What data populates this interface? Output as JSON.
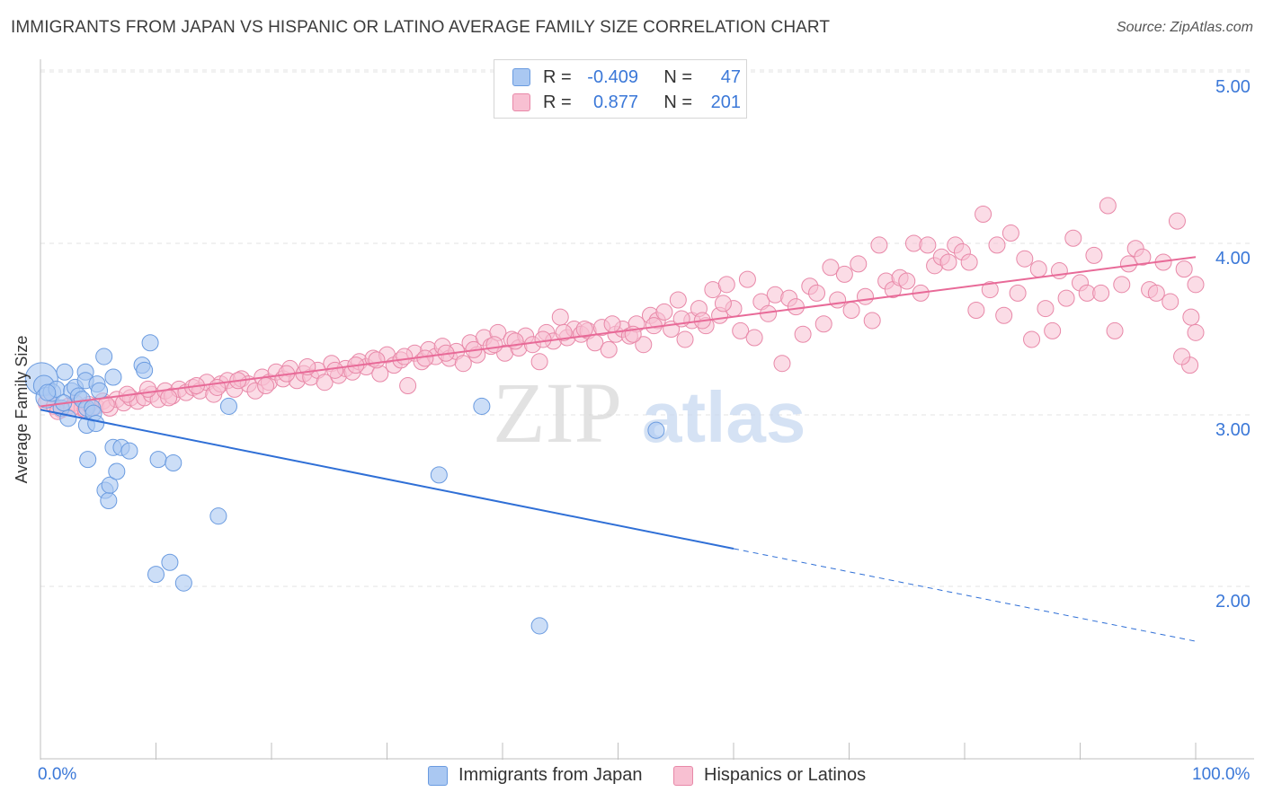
{
  "title": "IMMIGRANTS FROM JAPAN VS HISPANIC OR LATINO AVERAGE FAMILY SIZE CORRELATION CHART",
  "source": "Source: ZipAtlas.com",
  "watermark": {
    "zip": "ZIP",
    "atlas": "atlas"
  },
  "legend": {
    "rows": [
      {
        "r_label": "R =",
        "r_value": "-0.409",
        "n_label": "N =",
        "n_value": "47",
        "color": "#aac8f2",
        "stroke": "#6a9be0"
      },
      {
        "r_label": "R =",
        "r_value": "0.877",
        "n_label": "N =",
        "n_value": "201",
        "color": "#f8c0d2",
        "stroke": "#e888a8"
      }
    ]
  },
  "bottom_legend": [
    {
      "label": "Immigrants from Japan",
      "color": "#aac8f2",
      "stroke": "#6a9be0"
    },
    {
      "label": "Hispanics or Latinos",
      "color": "#f8c0d2",
      "stroke": "#e888a8"
    }
  ],
  "axes": {
    "ylabel": "Average Family Size",
    "x_min_label": "0.0%",
    "x_max_label": "100.0%",
    "y_tick_labels": [
      "5.00",
      "4.00",
      "3.00",
      "2.00"
    ]
  },
  "chart_data": {
    "type": "scatter",
    "title": "IMMIGRANTS FROM JAPAN VS HISPANIC OR LATINO AVERAGE FAMILY SIZE CORRELATION CHART",
    "xlabel": "",
    "ylabel": "Average Family Size",
    "xlim": [
      0,
      100
    ],
    "ylim": [
      1.0,
      5.15
    ],
    "y_ticks": [
      2.0,
      3.0,
      4.0,
      5.0
    ],
    "grid": "horizontal dashed",
    "legend_position": "top-center",
    "series": [
      {
        "name": "Immigrants from Japan",
        "color": "#aac8f2",
        "stroke": "#6a9be0",
        "line_color": "#2f6fd6",
        "trend": {
          "x0": 0,
          "y0": 3.03,
          "x1": 60,
          "y1": 2.22,
          "dash_to_x": 100,
          "dash_to_y": 1.68
        },
        "points": [
          [
            0.1,
            3.21,
            22
          ],
          [
            0.3,
            3.17,
            14
          ],
          [
            0.5,
            3.1,
            14
          ],
          [
            1.0,
            3.13,
            12
          ],
          [
            1.4,
            3.15,
            11
          ],
          [
            1.8,
            3.04,
            11
          ],
          [
            2.1,
            3.25,
            11
          ],
          [
            2.4,
            2.98,
            11
          ],
          [
            2.7,
            3.14,
            11
          ],
          [
            3.0,
            3.16,
            11
          ],
          [
            3.3,
            3.11,
            11
          ],
          [
            3.6,
            3.09,
            11
          ],
          [
            3.9,
            3.25,
            11
          ],
          [
            3.9,
            3.2,
            11
          ],
          [
            4.0,
            3.04,
            11
          ],
          [
            4.0,
            2.94,
            11
          ],
          [
            4.1,
            2.74,
            11
          ],
          [
            4.5,
            3.04,
            11
          ],
          [
            4.6,
            3.01,
            11
          ],
          [
            4.8,
            2.95,
            11
          ],
          [
            4.9,
            3.18,
            11
          ],
          [
            5.1,
            3.14,
            11
          ],
          [
            5.5,
            3.34,
            11
          ],
          [
            5.6,
            2.56,
            11
          ],
          [
            5.9,
            2.5,
            11
          ],
          [
            6.0,
            2.59,
            11
          ],
          [
            6.3,
            2.81,
            11
          ],
          [
            6.3,
            3.22,
            11
          ],
          [
            6.6,
            2.67,
            11
          ],
          [
            7.0,
            2.81,
            11
          ],
          [
            7.7,
            2.79,
            11
          ],
          [
            8.8,
            3.29,
            11
          ],
          [
            9.0,
            3.26,
            11
          ],
          [
            9.5,
            3.42,
            11
          ],
          [
            10.0,
            2.07,
            11
          ],
          [
            10.2,
            2.74,
            11
          ],
          [
            11.2,
            2.14,
            11
          ],
          [
            11.5,
            2.72,
            11
          ],
          [
            12.4,
            2.02,
            11
          ],
          [
            15.4,
            2.41,
            11
          ],
          [
            16.3,
            3.05,
            11
          ],
          [
            34.5,
            2.65,
            11
          ],
          [
            38.2,
            3.05,
            11
          ],
          [
            43.2,
            1.77,
            11
          ],
          [
            53.3,
            2.91,
            11
          ],
          [
            0.6,
            3.13,
            11
          ],
          [
            2.0,
            3.07,
            11
          ]
        ]
      },
      {
        "name": "Hispanics or Latinos",
        "color": "#f8c0d2",
        "stroke": "#e888a8",
        "line_color": "#e86a98",
        "trend": {
          "x0": 0,
          "y0": 3.05,
          "x1": 100,
          "y1": 3.92
        },
        "points": [
          [
            0.5,
            3.07
          ],
          [
            1.2,
            3.05
          ],
          [
            1.8,
            3.03
          ],
          [
            2.4,
            3.05
          ],
          [
            3.0,
            3.07
          ],
          [
            3.6,
            3.04
          ],
          [
            4.2,
            3.06
          ],
          [
            4.8,
            3.05
          ],
          [
            5.4,
            3.08
          ],
          [
            6.0,
            3.04
          ],
          [
            6.6,
            3.09
          ],
          [
            7.2,
            3.07
          ],
          [
            7.8,
            3.1
          ],
          [
            8.4,
            3.08
          ],
          [
            9.0,
            3.1
          ],
          [
            9.6,
            3.12
          ],
          [
            10.2,
            3.09
          ],
          [
            10.8,
            3.14
          ],
          [
            11.4,
            3.11
          ],
          [
            12.0,
            3.15
          ],
          [
            12.6,
            3.13
          ],
          [
            13.2,
            3.16
          ],
          [
            13.8,
            3.14
          ],
          [
            14.4,
            3.19
          ],
          [
            15.0,
            3.12
          ],
          [
            15.6,
            3.18
          ],
          [
            16.2,
            3.2
          ],
          [
            16.8,
            3.15
          ],
          [
            17.4,
            3.21
          ],
          [
            18.0,
            3.18
          ],
          [
            18.6,
            3.14
          ],
          [
            19.2,
            3.22
          ],
          [
            19.8,
            3.19
          ],
          [
            20.4,
            3.25
          ],
          [
            21.0,
            3.21
          ],
          [
            21.6,
            3.27
          ],
          [
            22.2,
            3.2
          ],
          [
            22.8,
            3.24
          ],
          [
            23.4,
            3.22
          ],
          [
            24.0,
            3.26
          ],
          [
            24.6,
            3.19
          ],
          [
            25.2,
            3.3
          ],
          [
            25.8,
            3.23
          ],
          [
            26.4,
            3.27
          ],
          [
            27.0,
            3.25
          ],
          [
            27.6,
            3.31
          ],
          [
            28.2,
            3.28
          ],
          [
            28.8,
            3.33
          ],
          [
            29.4,
            3.24
          ],
          [
            30.0,
            3.35
          ],
          [
            30.6,
            3.29
          ],
          [
            31.2,
            3.32
          ],
          [
            31.8,
            3.17
          ],
          [
            32.4,
            3.36
          ],
          [
            33.0,
            3.31
          ],
          [
            33.6,
            3.38
          ],
          [
            34.2,
            3.34
          ],
          [
            34.8,
            3.4
          ],
          [
            35.4,
            3.33
          ],
          [
            36.0,
            3.37
          ],
          [
            36.6,
            3.3
          ],
          [
            37.2,
            3.42
          ],
          [
            37.8,
            3.35
          ],
          [
            38.4,
            3.45
          ],
          [
            39.0,
            3.4
          ],
          [
            39.6,
            3.48
          ],
          [
            40.2,
            3.36
          ],
          [
            40.8,
            3.44
          ],
          [
            41.4,
            3.39
          ],
          [
            42.0,
            3.46
          ],
          [
            42.6,
            3.41
          ],
          [
            43.2,
            3.31
          ],
          [
            43.8,
            3.48
          ],
          [
            44.4,
            3.43
          ],
          [
            45.0,
            3.57
          ],
          [
            45.6,
            3.45
          ],
          [
            46.2,
            3.5
          ],
          [
            46.8,
            3.47
          ],
          [
            47.4,
            3.49
          ],
          [
            48.0,
            3.42
          ],
          [
            48.6,
            3.51
          ],
          [
            49.2,
            3.38
          ],
          [
            49.8,
            3.47
          ],
          [
            50.4,
            3.5
          ],
          [
            51.0,
            3.46
          ],
          [
            51.6,
            3.53
          ],
          [
            52.2,
            3.41
          ],
          [
            52.8,
            3.58
          ],
          [
            53.4,
            3.55
          ],
          [
            54.0,
            3.6
          ],
          [
            54.6,
            3.5
          ],
          [
            55.2,
            3.67
          ],
          [
            55.8,
            3.44
          ],
          [
            56.4,
            3.55
          ],
          [
            57.0,
            3.62
          ],
          [
            57.6,
            3.52
          ],
          [
            58.2,
            3.73
          ],
          [
            58.8,
            3.58
          ],
          [
            59.4,
            3.76
          ],
          [
            60.0,
            3.62
          ],
          [
            60.6,
            3.49
          ],
          [
            61.2,
            3.79
          ],
          [
            61.8,
            3.45
          ],
          [
            62.4,
            3.66
          ],
          [
            63.0,
            3.59
          ],
          [
            63.6,
            3.7
          ],
          [
            64.2,
            3.3
          ],
          [
            64.8,
            3.68
          ],
          [
            65.4,
            3.63
          ],
          [
            66.0,
            3.47
          ],
          [
            66.6,
            3.75
          ],
          [
            67.2,
            3.71
          ],
          [
            67.8,
            3.53
          ],
          [
            68.4,
            3.86
          ],
          [
            69.0,
            3.67
          ],
          [
            69.6,
            3.82
          ],
          [
            70.2,
            3.61
          ],
          [
            70.8,
            3.88
          ],
          [
            71.4,
            3.69
          ],
          [
            72.0,
            3.55
          ],
          [
            72.6,
            3.99
          ],
          [
            73.2,
            3.78
          ],
          [
            73.8,
            3.73
          ],
          [
            74.4,
            3.8
          ],
          [
            75.0,
            3.78
          ],
          [
            75.6,
            4.0
          ],
          [
            76.2,
            3.71
          ],
          [
            76.8,
            3.99
          ],
          [
            77.4,
            3.87
          ],
          [
            78.0,
            3.92
          ],
          [
            78.6,
            3.89
          ],
          [
            79.2,
            3.99
          ],
          [
            79.8,
            3.95
          ],
          [
            80.4,
            3.89
          ],
          [
            81.0,
            3.61
          ],
          [
            81.6,
            4.17
          ],
          [
            82.2,
            3.73
          ],
          [
            82.8,
            3.99
          ],
          [
            83.4,
            3.58
          ],
          [
            84.0,
            4.06
          ],
          [
            84.6,
            3.71
          ],
          [
            85.2,
            3.91
          ],
          [
            85.8,
            3.44
          ],
          [
            86.4,
            3.85
          ],
          [
            87.0,
            3.62
          ],
          [
            87.6,
            3.49
          ],
          [
            88.2,
            3.84
          ],
          [
            88.8,
            3.68
          ],
          [
            89.4,
            4.03
          ],
          [
            90.0,
            3.77
          ],
          [
            90.6,
            3.71
          ],
          [
            91.2,
            3.93
          ],
          [
            91.8,
            3.71
          ],
          [
            92.4,
            4.22
          ],
          [
            93.0,
            3.49
          ],
          [
            93.6,
            3.76
          ],
          [
            94.2,
            3.88
          ],
          [
            94.8,
            3.97
          ],
          [
            95.4,
            3.92
          ],
          [
            96.0,
            3.73
          ],
          [
            96.6,
            3.71
          ],
          [
            97.2,
            3.89
          ],
          [
            97.8,
            3.66
          ],
          [
            98.4,
            4.13
          ],
          [
            99.0,
            3.85
          ],
          [
            99.6,
            3.57
          ],
          [
            100.0,
            3.48
          ],
          [
            100.0,
            3.76
          ],
          [
            99.5,
            3.29
          ],
          [
            98.8,
            3.34
          ],
          [
            1.5,
            3.02
          ],
          [
            2.7,
            3.04
          ],
          [
            3.9,
            3.03
          ],
          [
            5.7,
            3.06
          ],
          [
            7.5,
            3.12
          ],
          [
            9.3,
            3.15
          ],
          [
            11.1,
            3.1
          ],
          [
            13.5,
            3.17
          ],
          [
            15.3,
            3.16
          ],
          [
            17.1,
            3.2
          ],
          [
            19.5,
            3.17
          ],
          [
            21.3,
            3.24
          ],
          [
            23.1,
            3.28
          ],
          [
            25.5,
            3.26
          ],
          [
            27.3,
            3.29
          ],
          [
            29.1,
            3.32
          ],
          [
            31.5,
            3.34
          ],
          [
            33.3,
            3.33
          ],
          [
            35.1,
            3.36
          ],
          [
            37.5,
            3.38
          ],
          [
            39.3,
            3.41
          ],
          [
            41.1,
            3.43
          ],
          [
            43.5,
            3.44
          ],
          [
            45.3,
            3.48
          ],
          [
            47.1,
            3.5
          ],
          [
            49.5,
            3.53
          ],
          [
            51.3,
            3.47
          ],
          [
            53.1,
            3.52
          ],
          [
            55.5,
            3.56
          ],
          [
            57.3,
            3.55
          ],
          [
            59.1,
            3.65
          ]
        ]
      }
    ]
  }
}
